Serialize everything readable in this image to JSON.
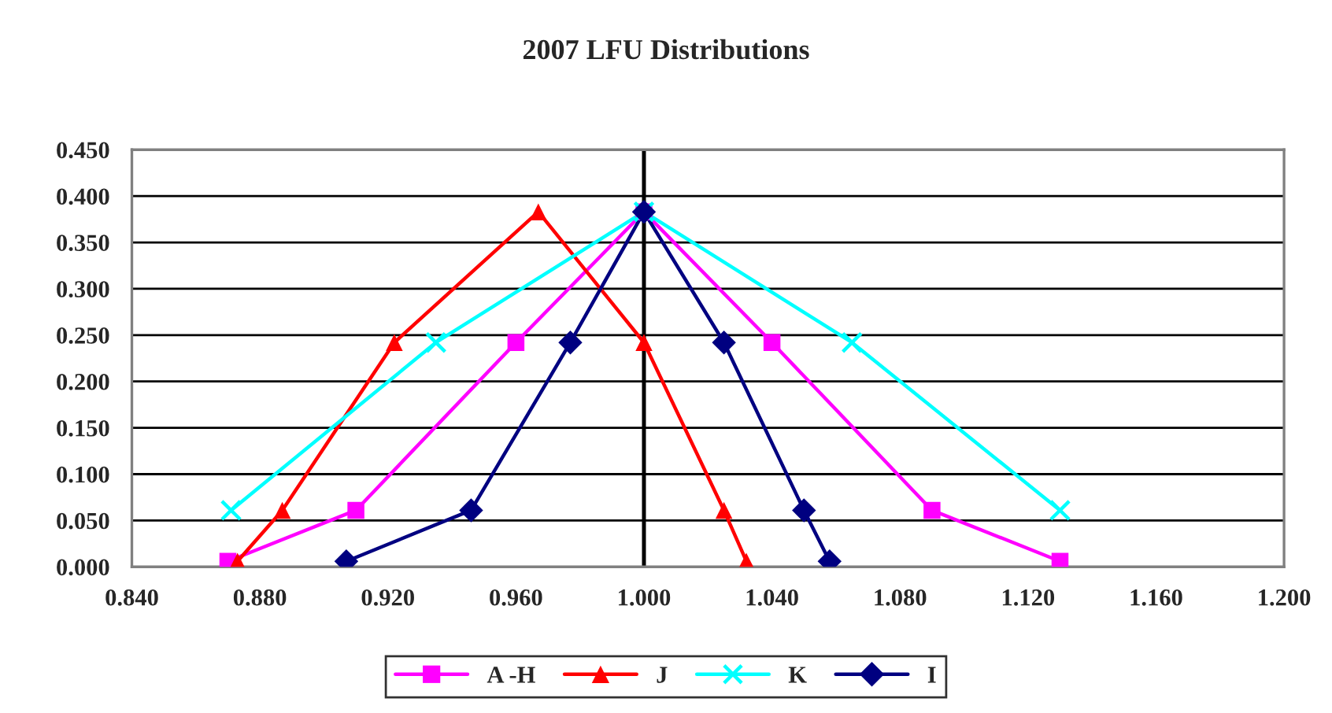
{
  "chart_data": {
    "type": "line",
    "title": "2007 LFU Distributions",
    "xlim": [
      0.84,
      1.2
    ],
    "xticks": [
      {
        "value": 0.84,
        "label": "0.840"
      },
      {
        "value": 0.88,
        "label": "0.880"
      },
      {
        "value": 0.92,
        "label": "0.920"
      },
      {
        "value": 0.96,
        "label": "0.960"
      },
      {
        "value": 1.0,
        "label": "1.000"
      },
      {
        "value": 1.04,
        "label": "1.040"
      },
      {
        "value": 1.08,
        "label": "1.080"
      },
      {
        "value": 1.12,
        "label": "1.120"
      },
      {
        "value": 1.16,
        "label": "1.160"
      },
      {
        "value": 1.2,
        "label": "1.200"
      }
    ],
    "ylim": [
      0,
      0.45
    ],
    "yticks": [
      {
        "value": 0,
        "label": "0.000"
      },
      {
        "value": 0.05,
        "label": "0.050"
      },
      {
        "value": 0.1,
        "label": "0.100"
      },
      {
        "value": 0.15,
        "label": "0.150"
      },
      {
        "value": 0.2,
        "label": "0.200"
      },
      {
        "value": 0.25,
        "label": "0.250"
      },
      {
        "value": 0.3,
        "label": "0.300"
      },
      {
        "value": 0.35,
        "label": "0.350"
      },
      {
        "value": 0.4,
        "label": "0.400"
      },
      {
        "value": 0.45,
        "label": "0.450"
      }
    ],
    "grid": "y",
    "legend": "bottom",
    "line_style": "solid",
    "ref_lines": [
      {
        "axis": "x",
        "value": 1.0,
        "color": "#000000"
      }
    ],
    "series": [
      {
        "name": "A -H",
        "color": "#ff00ff",
        "marker": "square",
        "x": [
          0.87,
          0.91,
          0.96,
          1.0,
          1.04,
          1.09,
          1.13
        ],
        "values": [
          0.006,
          0.061,
          0.242,
          0.383,
          0.242,
          0.061,
          0.006
        ]
      },
      {
        "name": "J",
        "color": "#ff0000",
        "marker": "triangle",
        "x": [
          0.873,
          0.887,
          0.922,
          0.967,
          1.0,
          1.025,
          1.032
        ],
        "values": [
          0.006,
          0.061,
          0.242,
          0.383,
          0.242,
          0.061,
          0.006
        ]
      },
      {
        "name": "K",
        "color": "#00ffff",
        "marker": "cross",
        "x": [
          0.871,
          0.935,
          1.0,
          1.065,
          1.13
        ],
        "values": [
          0.061,
          0.242,
          0.383,
          0.242,
          0.061
        ]
      },
      {
        "name": "I",
        "color": "#000080",
        "marker": "diamond",
        "x": [
          0.907,
          0.946,
          0.977,
          1.0,
          1.025,
          1.05,
          1.058
        ],
        "values": [
          0.006,
          0.061,
          0.242,
          0.383,
          0.242,
          0.061,
          0.006
        ]
      }
    ]
  }
}
